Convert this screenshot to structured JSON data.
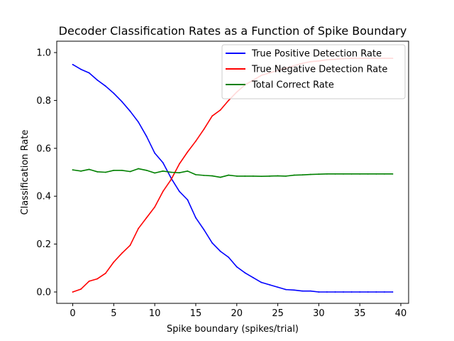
{
  "chart_data": {
    "type": "line",
    "title": "Decoder Classification Rates as a Function of Spike Boundary",
    "xlabel": "Spike boundary (spikes/trial)",
    "ylabel": "Classification Rate",
    "xlim": [
      -1.95,
      40.95
    ],
    "ylim": [
      -0.0475,
      1.0475
    ],
    "xticks": [
      0,
      5,
      10,
      15,
      20,
      25,
      30,
      35,
      40
    ],
    "yticks": [
      0.0,
      0.2,
      0.4,
      0.6,
      0.8,
      1.0
    ],
    "xtick_labels": [
      "0",
      "5",
      "10",
      "15",
      "20",
      "25",
      "30",
      "35",
      "40"
    ],
    "ytick_labels": [
      "0.0",
      "0.2",
      "0.4",
      "0.6",
      "0.8",
      "1.0"
    ],
    "grid": false,
    "legend_position": "top-right",
    "x": [
      0,
      1,
      2,
      3,
      4,
      5,
      6,
      7,
      8,
      9,
      10,
      11,
      12,
      13,
      14,
      15,
      16,
      17,
      18,
      19,
      20,
      21,
      22,
      23,
      24,
      25,
      26,
      27,
      28,
      29,
      30,
      31,
      32,
      33,
      34,
      35,
      36,
      37,
      38,
      39
    ],
    "series": [
      {
        "name": "True Positive Detection Rate",
        "color": "#0000ff",
        "values": [
          0.95,
          0.93,
          0.915,
          0.885,
          0.86,
          0.83,
          0.795,
          0.755,
          0.71,
          0.65,
          0.58,
          0.54,
          0.475,
          0.42,
          0.385,
          0.31,
          0.26,
          0.205,
          0.17,
          0.145,
          0.105,
          0.08,
          0.06,
          0.04,
          0.03,
          0.02,
          0.01,
          0.008,
          0.004,
          0.004,
          0.0,
          0.0,
          0.0,
          0.0,
          0.0,
          0.0,
          0.0,
          0.0,
          0.0,
          0.0
        ]
      },
      {
        "name": "True Negative Detection Rate",
        "color": "#ff0000",
        "values": [
          0.0,
          0.012,
          0.045,
          0.055,
          0.078,
          0.125,
          0.162,
          0.195,
          0.265,
          0.31,
          0.355,
          0.42,
          0.47,
          0.535,
          0.585,
          0.63,
          0.68,
          0.735,
          0.76,
          0.8,
          0.835,
          0.865,
          0.885,
          0.905,
          0.915,
          0.925,
          0.935,
          0.945,
          0.955,
          0.962,
          0.965,
          0.97,
          0.972,
          0.975,
          0.976,
          0.976,
          0.976,
          0.976,
          0.976,
          0.976
        ]
      },
      {
        "name": "Total Correct Rate",
        "color": "#008000",
        "values": [
          0.51,
          0.505,
          0.512,
          0.502,
          0.5,
          0.508,
          0.508,
          0.503,
          0.515,
          0.508,
          0.497,
          0.505,
          0.5,
          0.498,
          0.505,
          0.49,
          0.487,
          0.485,
          0.479,
          0.488,
          0.484,
          0.484,
          0.484,
          0.483,
          0.484,
          0.485,
          0.484,
          0.488,
          0.489,
          0.491,
          0.492,
          0.493,
          0.493,
          0.493,
          0.493,
          0.493,
          0.493,
          0.493,
          0.493,
          0.493
        ]
      }
    ]
  }
}
